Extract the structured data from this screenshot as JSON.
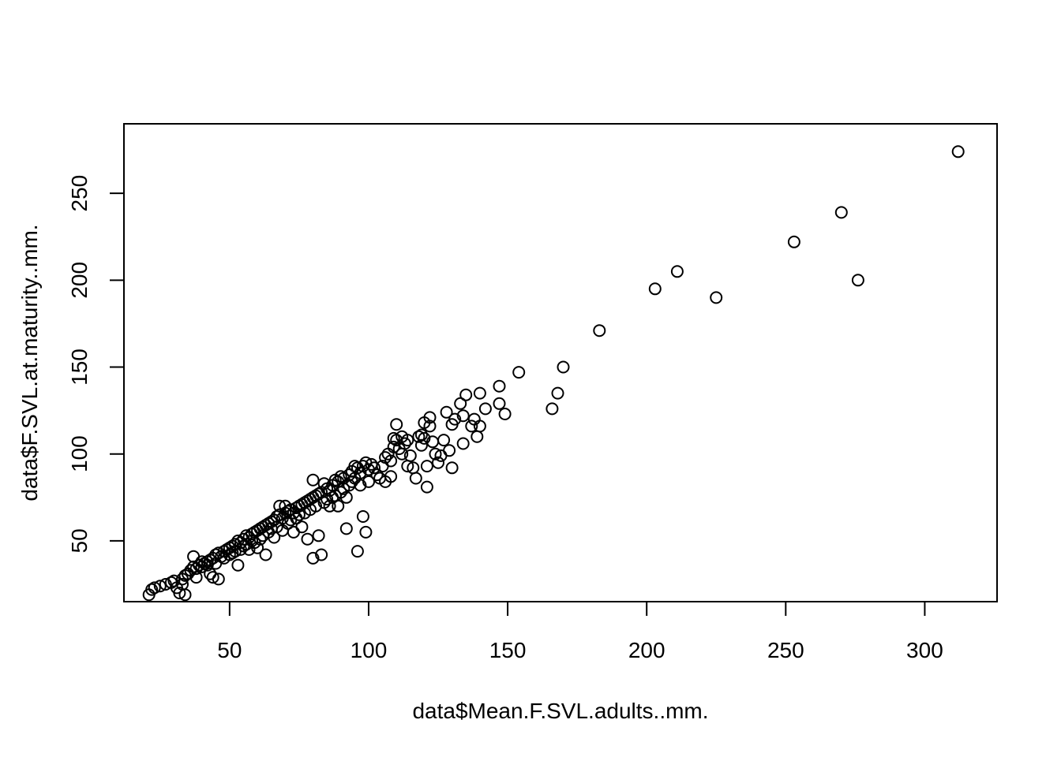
{
  "chart_data": {
    "type": "scatter",
    "title": "",
    "xlabel": "data$Mean.F.SVL.adults..mm.",
    "ylabel": "data$F.SVL.at.maturity..mm.",
    "xlim": [
      12,
      326
    ],
    "ylim": [
      15,
      290
    ],
    "xticks": [
      50,
      100,
      150,
      200,
      250,
      300
    ],
    "yticks": [
      50,
      100,
      150,
      200,
      250
    ],
    "xtick_labels": [
      "50",
      "100",
      "150",
      "200",
      "250",
      "300"
    ],
    "ytick_labels": [
      "50",
      "100",
      "150",
      "200",
      "250"
    ],
    "grid": false,
    "legend": null,
    "marker": "open-circle",
    "color": "#000000",
    "points": [
      [
        21,
        19
      ],
      [
        22,
        22
      ],
      [
        23,
        23
      ],
      [
        25,
        24
      ],
      [
        27,
        25
      ],
      [
        29,
        26
      ],
      [
        30,
        27
      ],
      [
        31,
        23
      ],
      [
        32,
        20
      ],
      [
        33,
        25
      ],
      [
        34,
        19
      ],
      [
        33,
        28
      ],
      [
        34,
        30
      ],
      [
        35,
        31
      ],
      [
        36,
        33
      ],
      [
        37,
        35
      ],
      [
        37,
        41
      ],
      [
        38,
        29
      ],
      [
        38,
        34
      ],
      [
        39,
        36
      ],
      [
        40,
        35
      ],
      [
        40,
        38
      ],
      [
        41,
        37
      ],
      [
        42,
        38
      ],
      [
        42,
        36
      ],
      [
        43,
        39
      ],
      [
        43,
        31
      ],
      [
        44,
        40
      ],
      [
        44,
        29
      ],
      [
        45,
        42
      ],
      [
        45,
        37
      ],
      [
        46,
        28
      ],
      [
        46,
        43
      ],
      [
        47,
        41
      ],
      [
        48,
        44
      ],
      [
        48,
        40
      ],
      [
        49,
        45
      ],
      [
        50,
        46
      ],
      [
        50,
        42
      ],
      [
        51,
        47
      ],
      [
        51,
        43
      ],
      [
        52,
        48
      ],
      [
        52,
        44
      ],
      [
        53,
        50
      ],
      [
        53,
        36
      ],
      [
        54,
        49
      ],
      [
        54,
        45
      ],
      [
        55,
        51
      ],
      [
        55,
        47
      ],
      [
        56,
        53
      ],
      [
        56,
        48
      ],
      [
        57,
        52
      ],
      [
        57,
        45
      ],
      [
        58,
        54
      ],
      [
        58,
        50
      ],
      [
        59,
        55
      ],
      [
        59,
        49
      ],
      [
        60,
        56
      ],
      [
        60,
        46
      ],
      [
        61,
        57
      ],
      [
        61,
        51
      ],
      [
        62,
        58
      ],
      [
        62,
        53
      ],
      [
        63,
        59
      ],
      [
        63,
        42
      ],
      [
        64,
        60
      ],
      [
        64,
        55
      ],
      [
        65,
        61
      ],
      [
        65,
        57
      ],
      [
        66,
        62
      ],
      [
        66,
        52
      ],
      [
        67,
        64
      ],
      [
        67,
        58
      ],
      [
        68,
        65
      ],
      [
        68,
        70
      ],
      [
        69,
        63
      ],
      [
        69,
        56
      ],
      [
        70,
        66
      ],
      [
        70,
        70
      ],
      [
        71,
        67
      ],
      [
        71,
        60
      ],
      [
        72,
        68
      ],
      [
        72,
        62
      ],
      [
        73,
        66
      ],
      [
        73,
        55
      ],
      [
        74,
        69
      ],
      [
        74,
        63
      ],
      [
        75,
        70
      ],
      [
        75,
        65
      ],
      [
        76,
        71
      ],
      [
        76,
        58
      ],
      [
        77,
        72
      ],
      [
        77,
        66
      ],
      [
        78,
        73
      ],
      [
        78,
        51
      ],
      [
        79,
        74
      ],
      [
        79,
        68
      ],
      [
        80,
        75
      ],
      [
        80,
        85
      ],
      [
        80,
        40
      ],
      [
        81,
        76
      ],
      [
        81,
        70
      ],
      [
        82,
        77
      ],
      [
        82,
        53
      ],
      [
        83,
        78
      ],
      [
        83,
        42
      ],
      [
        84,
        83
      ],
      [
        84,
        72
      ],
      [
        85,
        80
      ],
      [
        85,
        74
      ],
      [
        86,
        79
      ],
      [
        86,
        70
      ],
      [
        87,
        82
      ],
      [
        87,
        75
      ],
      [
        88,
        85
      ],
      [
        88,
        76
      ],
      [
        89,
        84
      ],
      [
        89,
        70
      ],
      [
        90,
        87
      ],
      [
        90,
        78
      ],
      [
        91,
        86
      ],
      [
        91,
        80
      ],
      [
        92,
        57
      ],
      [
        92,
        75
      ],
      [
        93,
        88
      ],
      [
        93,
        82
      ],
      [
        94,
        90
      ],
      [
        94,
        84
      ],
      [
        95,
        93
      ],
      [
        95,
        86
      ],
      [
        96,
        44
      ],
      [
        96,
        92
      ],
      [
        97,
        89
      ],
      [
        97,
        82
      ],
      [
        98,
        93
      ],
      [
        98,
        64
      ],
      [
        99,
        95
      ],
      [
        99,
        55
      ],
      [
        100,
        91
      ],
      [
        100,
        84
      ],
      [
        101,
        94
      ],
      [
        102,
        92
      ],
      [
        103,
        88
      ],
      [
        104,
        86
      ],
      [
        105,
        93
      ],
      [
        106,
        98
      ],
      [
        106,
        84
      ],
      [
        107,
        100
      ],
      [
        108,
        96
      ],
      [
        108,
        87
      ],
      [
        109,
        104
      ],
      [
        109,
        109
      ],
      [
        110,
        108
      ],
      [
        110,
        117
      ],
      [
        111,
        103
      ],
      [
        112,
        110
      ],
      [
        112,
        100
      ],
      [
        113,
        106
      ],
      [
        114,
        108
      ],
      [
        114,
        93
      ],
      [
        115,
        99
      ],
      [
        116,
        92
      ],
      [
        117,
        86
      ],
      [
        118,
        110
      ],
      [
        119,
        111
      ],
      [
        119,
        105
      ],
      [
        120,
        118
      ],
      [
        120,
        109
      ],
      [
        121,
        81
      ],
      [
        121,
        93
      ],
      [
        122,
        121
      ],
      [
        122,
        116
      ],
      [
        123,
        107
      ],
      [
        124,
        100
      ],
      [
        125,
        95
      ],
      [
        126,
        99
      ],
      [
        127,
        108
      ],
      [
        128,
        124
      ],
      [
        129,
        102
      ],
      [
        130,
        117
      ],
      [
        130,
        92
      ],
      [
        131,
        120
      ],
      [
        133,
        129
      ],
      [
        134,
        106
      ],
      [
        134,
        122
      ],
      [
        135,
        134
      ],
      [
        137,
        116
      ],
      [
        138,
        120
      ],
      [
        139,
        110
      ],
      [
        140,
        116
      ],
      [
        140,
        135
      ],
      [
        142,
        126
      ],
      [
        147,
        139
      ],
      [
        147,
        129
      ],
      [
        149,
        123
      ],
      [
        154,
        147
      ],
      [
        166,
        126
      ],
      [
        168,
        135
      ],
      [
        170,
        150
      ],
      [
        183,
        171
      ],
      [
        203,
        195
      ],
      [
        211,
        205
      ],
      [
        225,
        190
      ],
      [
        253,
        222
      ],
      [
        270,
        239
      ],
      [
        276,
        200
      ],
      [
        312,
        274
      ]
    ]
  }
}
